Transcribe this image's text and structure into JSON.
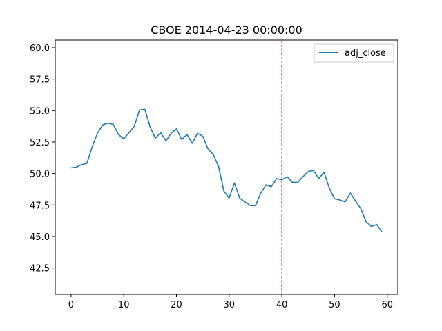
{
  "chart_data": {
    "type": "line",
    "title": "CBOE 2014-04-23 00:00:00",
    "xlabel": "",
    "ylabel": "",
    "xlim": [
      -3,
      62
    ],
    "ylim": [
      40.4,
      60.6
    ],
    "xticks": [
      0,
      10,
      20,
      30,
      40,
      50,
      60
    ],
    "yticks": [
      42.5,
      45.0,
      47.5,
      50.0,
      52.5,
      55.0,
      57.5,
      60.0
    ],
    "ytick_labels": [
      "42.5",
      "45.0",
      "47.5",
      "50.0",
      "52.5",
      "55.0",
      "57.5",
      "60.0"
    ],
    "grid": false,
    "legend_position": "top-right",
    "vline": {
      "x": 40,
      "color": "#d62728",
      "style": "dashed"
    },
    "series": [
      {
        "name": "adj_close",
        "color": "#1f77b4",
        "x": [
          0,
          1,
          2,
          3,
          4,
          5,
          6,
          7,
          8,
          9,
          10,
          11,
          12,
          13,
          14,
          15,
          16,
          17,
          18,
          19,
          20,
          21,
          22,
          23,
          24,
          25,
          26,
          27,
          28,
          29,
          30,
          31,
          32,
          33,
          34,
          35,
          36,
          37,
          38,
          39,
          40,
          41,
          42,
          43,
          44,
          45,
          46,
          47,
          48,
          49,
          50,
          51,
          52,
          53,
          54,
          55,
          56,
          57,
          58,
          59
        ],
        "values": [
          50.45,
          50.5,
          50.7,
          50.8,
          52.1,
          53.2,
          53.85,
          54.0,
          53.9,
          53.1,
          52.75,
          53.25,
          53.75,
          55.05,
          55.1,
          53.7,
          52.8,
          53.25,
          52.6,
          53.2,
          53.55,
          52.7,
          53.1,
          52.4,
          53.2,
          52.95,
          51.95,
          51.5,
          50.55,
          48.6,
          48.05,
          49.25,
          48.05,
          47.75,
          47.45,
          47.45,
          48.45,
          49.1,
          48.95,
          49.6,
          49.5,
          49.75,
          49.3,
          49.3,
          49.75,
          50.15,
          50.25,
          49.6,
          50.1,
          48.85,
          48.0,
          47.9,
          47.75,
          48.45,
          47.8,
          47.2,
          46.15,
          45.8,
          45.95,
          45.35
        ]
      }
    ]
  }
}
